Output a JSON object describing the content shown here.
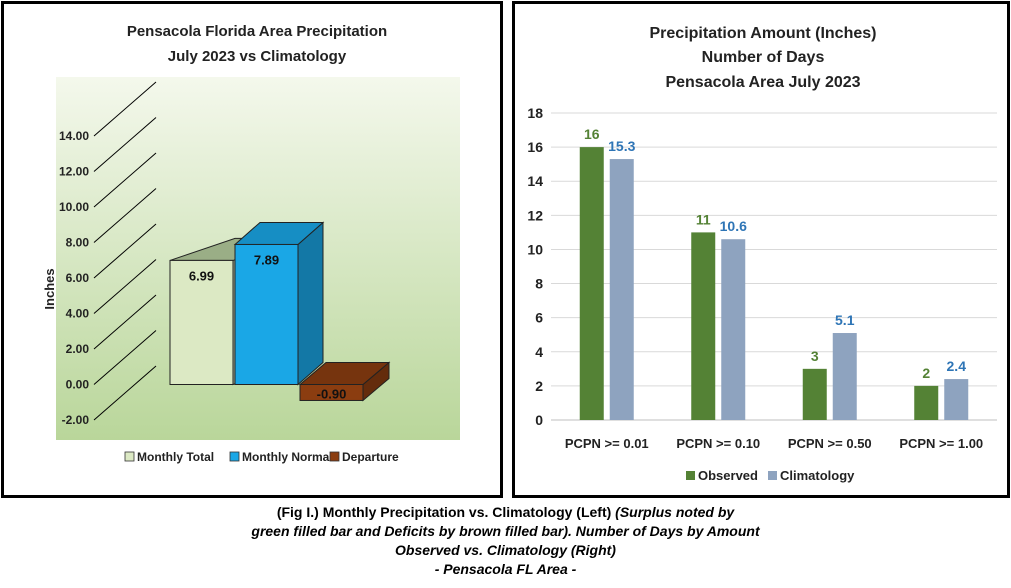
{
  "chart_data": [
    {
      "type": "bar",
      "title": "Pensacola Florida Area Precipitation",
      "subtitle": "July 2023 vs Climatology",
      "xlabel": "",
      "ylabel": "Inches",
      "ylim": [
        -2,
        14
      ],
      "ytick_labels": [
        "14.00",
        "12.00",
        "10.00",
        "8.00",
        "6.00",
        "4.00",
        "2.00",
        "0.00",
        "-2.00"
      ],
      "grid": true,
      "legend_position": "bottom",
      "series": [
        {
          "name": "Monthly Total",
          "value": 6.99,
          "label": "6.99",
          "color": "#dce9c4"
        },
        {
          "name": "Monthly Normal",
          "value": 7.89,
          "label": "7.89",
          "color": "#1aa7e6"
        },
        {
          "name": "Departure",
          "value": -0.9,
          "label": "-0.90",
          "color": "#8b3d10"
        }
      ]
    },
    {
      "type": "bar",
      "title": "Precipitation Amount (Inches)",
      "subtitle": "Number of Days",
      "subtitle2": "Pensacola Area July 2023",
      "xlabel": "",
      "ylabel": "",
      "ylim": [
        0,
        18
      ],
      "ytick_labels": [
        "0",
        "2",
        "4",
        "6",
        "8",
        "10",
        "12",
        "14",
        "16",
        "18"
      ],
      "grid": true,
      "legend_position": "bottom",
      "categories": [
        "PCPN >= 0.01",
        "PCPN >= 0.10",
        "PCPN >= 0.50",
        "PCPN >= 1.00"
      ],
      "series": [
        {
          "name": "Observed",
          "values": [
            16,
            11,
            3,
            2
          ],
          "labels": [
            "16",
            "11",
            "3",
            "2"
          ],
          "color": "#548235",
          "label_color": "#548235"
        },
        {
          "name": "Climatology",
          "values": [
            15.3,
            10.6,
            5.1,
            2.4
          ],
          "labels": [
            "15.3",
            "10.6",
            "5.1",
            "2.4"
          ],
          "color": "#8ea3bf",
          "label_color": "#2e75b6"
        }
      ]
    }
  ],
  "caption": {
    "line1_normal": "(Fig I.) Monthly Precipitation vs. Climatology (Left)",
    "line1_italic": "(Surplus noted by",
    "line2": "green filled bar and Deficits by brown filled bar). Number of Days by Amount",
    "line3": "Observed vs. Climatology (Right)",
    "line4": "- Pensacola FL Area -"
  }
}
